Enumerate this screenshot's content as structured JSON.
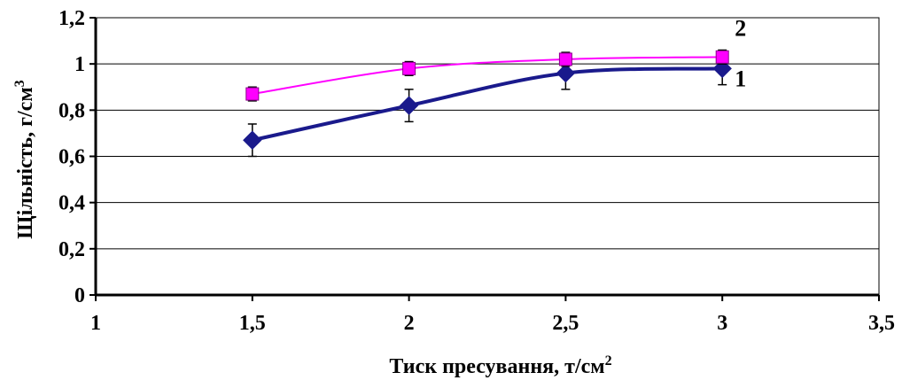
{
  "chart_data": {
    "type": "line",
    "xlabel": "Тиск пресування, т/см",
    "xlabel_sup": "2",
    "ylabel": "Щільність, г/см",
    "ylabel_sup": "3",
    "xlim": [
      1,
      3.5
    ],
    "ylim": [
      0,
      1.2
    ],
    "x_ticks": [
      1,
      1.5,
      2,
      2.5,
      3,
      3.5
    ],
    "x_tick_labels": [
      "1",
      "1,5",
      "2",
      "2,5",
      "3",
      "3,5"
    ],
    "y_ticks": [
      0,
      0.2,
      0.4,
      0.6,
      0.8,
      1.0,
      1.2
    ],
    "y_tick_labels": [
      "0",
      "0,2",
      "0,4",
      "0,6",
      "0,8",
      "1",
      "1,2"
    ],
    "grid": "horizontal",
    "series": [
      {
        "label": "1",
        "color": "#1A1A8C",
        "marker": "diamond",
        "x": [
          1.5,
          2,
          2.5,
          3
        ],
        "y": [
          0.67,
          0.82,
          0.96,
          0.98
        ],
        "error": [
          0.07,
          0.07,
          0.07,
          0.07
        ]
      },
      {
        "label": "2",
        "color": "#FF00FF",
        "marker": "square",
        "x": [
          1.5,
          2,
          2.5,
          3
        ],
        "y": [
          0.87,
          0.98,
          1.02,
          1.03
        ],
        "error": [
          0.03,
          0.03,
          0.03,
          0.03
        ]
      }
    ]
  }
}
